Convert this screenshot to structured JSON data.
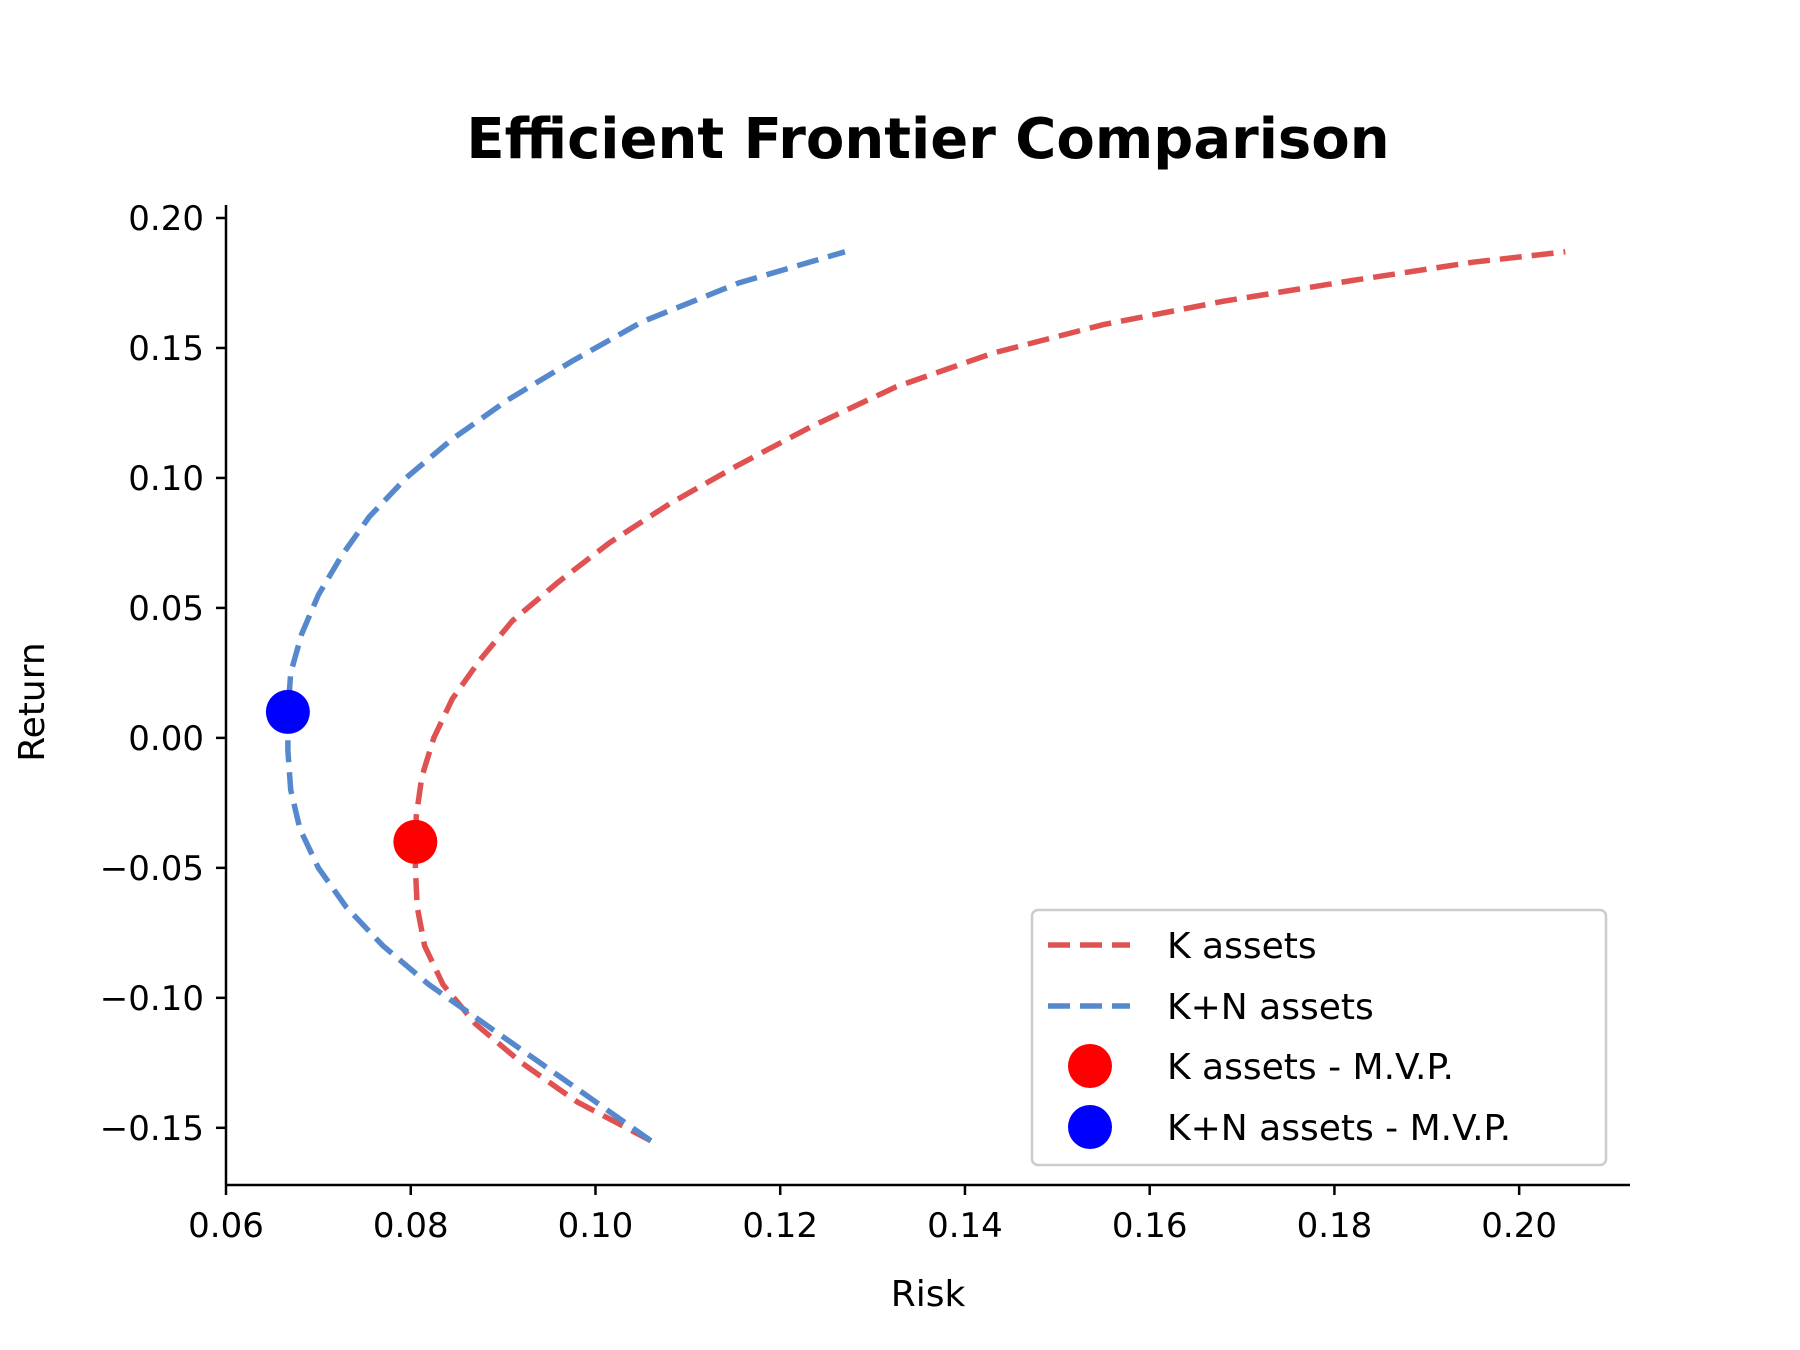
{
  "chart_data": {
    "type": "line",
    "title": "Efficient Frontier Comparison",
    "xlabel": "Risk",
    "ylabel": "Return",
    "xlim": [
      0.06,
      0.212
    ],
    "ylim": [
      -0.172,
      0.205
    ],
    "xticks": [
      0.06,
      0.08,
      0.1,
      0.12,
      0.14,
      0.16,
      0.18,
      0.2
    ],
    "xtick_labels": [
      "0.06",
      "0.08",
      "0.10",
      "0.12",
      "0.14",
      "0.16",
      "0.18",
      "0.20"
    ],
    "yticks": [
      0.2,
      0.15,
      0.1,
      0.05,
      0.0,
      -0.05,
      -0.1,
      -0.15
    ],
    "ytick_labels": [
      "0.20",
      "0.15",
      "0.10",
      "0.05",
      "0.00",
      "−0.05",
      "−0.10",
      "−0.15"
    ],
    "grid": false,
    "legend_position": "lower-right",
    "series": [
      {
        "name": "K assets",
        "style": "dashed",
        "color": "#e05252",
        "points": [
          [
            0.106,
            -0.155
          ],
          [
            0.098,
            -0.14
          ],
          [
            0.092,
            -0.125
          ],
          [
            0.087,
            -0.11
          ],
          [
            0.0835,
            -0.095
          ],
          [
            0.0815,
            -0.08
          ],
          [
            0.0807,
            -0.065
          ],
          [
            0.0805,
            -0.05
          ],
          [
            0.0805,
            -0.04
          ],
          [
            0.0806,
            -0.03
          ],
          [
            0.0812,
            -0.015
          ],
          [
            0.0825,
            0.0
          ],
          [
            0.0845,
            0.015
          ],
          [
            0.0875,
            0.03
          ],
          [
            0.091,
            0.045
          ],
          [
            0.096,
            0.06
          ],
          [
            0.1015,
            0.075
          ],
          [
            0.108,
            0.09
          ],
          [
            0.1155,
            0.105
          ],
          [
            0.1235,
            0.12
          ],
          [
            0.1325,
            0.135
          ],
          [
            0.143,
            0.148
          ],
          [
            0.155,
            0.159
          ],
          [
            0.168,
            0.168
          ],
          [
            0.182,
            0.176
          ],
          [
            0.195,
            0.183
          ],
          [
            0.205,
            0.187
          ]
        ]
      },
      {
        "name": "K+N assets",
        "style": "dashed",
        "color": "#5588cc",
        "points": [
          [
            0.106,
            -0.155
          ],
          [
            0.1,
            -0.14
          ],
          [
            0.094,
            -0.125
          ],
          [
            0.088,
            -0.11
          ],
          [
            0.082,
            -0.095
          ],
          [
            0.077,
            -0.08
          ],
          [
            0.073,
            -0.065
          ],
          [
            0.07,
            -0.05
          ],
          [
            0.068,
            -0.035
          ],
          [
            0.067,
            -0.02
          ],
          [
            0.0667,
            -0.005
          ],
          [
            0.0667,
            0.01
          ],
          [
            0.067,
            0.025
          ],
          [
            0.0682,
            0.04
          ],
          [
            0.07,
            0.055
          ],
          [
            0.0725,
            0.07
          ],
          [
            0.0755,
            0.085
          ],
          [
            0.0795,
            0.1
          ],
          [
            0.0845,
            0.115
          ],
          [
            0.0905,
            0.13
          ],
          [
            0.0975,
            0.145
          ],
          [
            0.105,
            0.16
          ],
          [
            0.1155,
            0.175
          ],
          [
            0.127,
            0.187
          ]
        ]
      }
    ],
    "markers": [
      {
        "name": "K assets - M.V.P.",
        "x": 0.0805,
        "y": -0.04,
        "color": "#ff0000"
      },
      {
        "name": "K+N assets - M.V.P.",
        "x": 0.0667,
        "y": 0.01,
        "color": "#0000ff"
      }
    ]
  }
}
